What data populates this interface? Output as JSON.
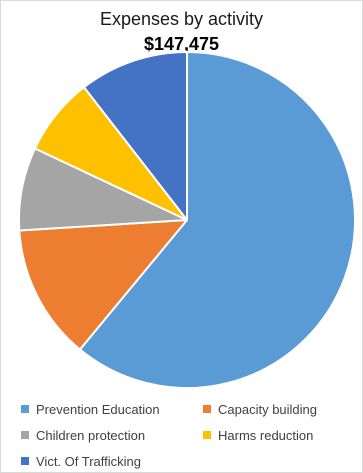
{
  "chart_data": {
    "type": "pie",
    "title": "Expenses by activity",
    "subtitle": "$147,475",
    "categories": [
      "Prevention Education",
      "Capacity building",
      "Children protection",
      "Harms reduction",
      "Vict. Of Trafficking"
    ],
    "values": [
      61,
      13,
      8,
      7.5,
      10.5
    ],
    "colors": [
      "#5b9bd5",
      "#ed7d31",
      "#a5a5a5",
      "#ffc000",
      "#4472c4"
    ],
    "legend_position": "bottom",
    "start_angle_deg": 0,
    "direction": "clockwise"
  }
}
